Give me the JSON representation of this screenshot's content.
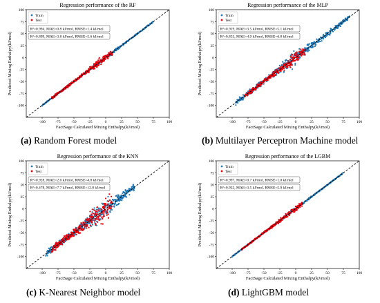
{
  "chart_data": [
    {
      "id": "rf",
      "type": "scatter",
      "title": "Regression performance of the RF",
      "xlabel": "FactSage Calculated Mixing Enthalpy(kJ/mol)",
      "ylabel": "Predicted Mixing Enthalpy(kJ/mol)",
      "xlim": [
        -125,
        100
      ],
      "ylim": [
        -125,
        100
      ],
      "xticks": [
        "-100",
        "-75",
        "-50",
        "-25",
        "0",
        "25",
        "50",
        "75",
        "100"
      ],
      "yticks": [
        "-100",
        "-75",
        "-50",
        "-25",
        "0",
        "25",
        "50",
        "75",
        "100"
      ],
      "legend": {
        "placement": "top-left",
        "entries": [
          "Train",
          "Test"
        ]
      },
      "metrics": [
        "R²=0.994, MAE=0.8 kJ/mol, RMSE=1.4 kJ/mol",
        "R²=0.899, MAE=3.8 kJ/mol, RMSE=5.6 kJ/mol"
      ],
      "reference_line": "y = x (dashed)",
      "series": [
        {
          "name": "Train",
          "color": "#1f77b4",
          "x_range": [
            -100,
            75
          ],
          "scatter_spread": 3
        },
        {
          "name": "Test",
          "color": "#e8000b",
          "x_range": [
            -85,
            10
          ],
          "scatter_spread": 6
        }
      ]
    },
    {
      "id": "mlp",
      "type": "scatter",
      "title": "Regression performance of the MLP",
      "xlabel": "FactSage Calculated Mixing Enthalpy(kJ/mol)",
      "ylabel": "Predicted Mixing Enthalpy(kJ/mol)",
      "xlim": [
        -125,
        100
      ],
      "ylim": [
        -125,
        100
      ],
      "xticks": [
        "-100",
        "-75",
        "-50",
        "-25",
        "0",
        "25",
        "50",
        "75",
        "100"
      ],
      "yticks": [
        "-100",
        "-75",
        "-50",
        "-25",
        "0",
        "25",
        "50",
        "75",
        "100"
      ],
      "legend": {
        "placement": "top-left",
        "entries": [
          "Train",
          "Test"
        ]
      },
      "metrics": [
        "R²=0.919, MAE=3.5 kJ/mol, RMSE=5.1 kJ/mol",
        "R²=0.853, MAE=4.9 kJ/mol, RMSE=6.8 kJ/mol"
      ],
      "reference_line": "y = x (dashed)",
      "series": [
        {
          "name": "Train",
          "color": "#1f77b4",
          "x_range": [
            -95,
            85
          ],
          "scatter_spread": 12
        },
        {
          "name": "Test",
          "color": "#e8000b",
          "x_range": [
            -80,
            15
          ],
          "scatter_spread": 9
        }
      ]
    },
    {
      "id": "knn",
      "type": "scatter",
      "title": "Regression performance of the KNN",
      "xlabel": "FactSage Calculated Mixing Enthalpy(kJ/mol)",
      "ylabel": "Predicted Mixing Enthalpy(kJ/mol)",
      "xlim": [
        -125,
        100
      ],
      "ylim": [
        -125,
        100
      ],
      "xticks": [
        "-100",
        "-75",
        "-50",
        "-25",
        "0",
        "25",
        "50",
        "75",
        "100"
      ],
      "yticks": [
        "-100",
        "-75",
        "-50",
        "-25",
        "0",
        "25",
        "50",
        "75",
        "100"
      ],
      "legend": {
        "placement": "top-left",
        "entries": [
          "Train",
          "Test"
        ]
      },
      "metrics": [
        "R²=0.928, MAE=2.6 kJ/mol, RMSE=4.8 kJ/mol",
        "R²=0.478, MAE=7.7 kJ/mol, RMSE=12.8 kJ/mol"
      ],
      "reference_line": "y = x (dashed)",
      "series": [
        {
          "name": "Train",
          "color": "#1f77b4",
          "x_range": [
            -95,
            45
          ],
          "scatter_spread": 14
        },
        {
          "name": "Test",
          "color": "#e8000b",
          "x_range": [
            -85,
            10
          ],
          "scatter_spread": 18
        }
      ]
    },
    {
      "id": "lgbm",
      "type": "scatter",
      "title": "Regression performance of the LGBM",
      "xlabel": "FactSage Calculated Mixing Enthalpy(kJ/mol)",
      "ylabel": "Predicted Mixing Enthalpy(kJ/mol)",
      "xlim": [
        -125,
        100
      ],
      "ylim": [
        -125,
        100
      ],
      "xticks": [
        "-100",
        "-75",
        "-50",
        "-25",
        "0",
        "25",
        "50",
        "75",
        "100"
      ],
      "yticks": [
        "-100",
        "-75",
        "-50",
        "-25",
        "0",
        "25",
        "50",
        "75",
        "100"
      ],
      "legend": {
        "placement": "top-left",
        "entries": [
          "Train",
          "Test"
        ]
      },
      "metrics": [
        "R²=0.997, MAE=0.7 kJ/mol, RMSE=1.0 kJ/mol",
        "R²=0.922, MAE=3.5 kJ/mol, RMSE=5.0 kJ/mol"
      ],
      "reference_line": "y = x (dashed)",
      "series": [
        {
          "name": "Train",
          "color": "#1f77b4",
          "x_range": [
            -100,
            75
          ],
          "scatter_spread": 2.5
        },
        {
          "name": "Test",
          "color": "#e8000b",
          "x_range": [
            -85,
            10
          ],
          "scatter_spread": 4.5
        }
      ]
    }
  ],
  "captions": [
    {
      "letter": "(a)",
      "text": "Random Forest model"
    },
    {
      "letter": "(b)",
      "text": "Multilayer Perceptron Machine model"
    },
    {
      "letter": "(c)",
      "text": "K-Nearest Neighbor model"
    },
    {
      "letter": "(d)",
      "text": "LightGBM model"
    }
  ]
}
